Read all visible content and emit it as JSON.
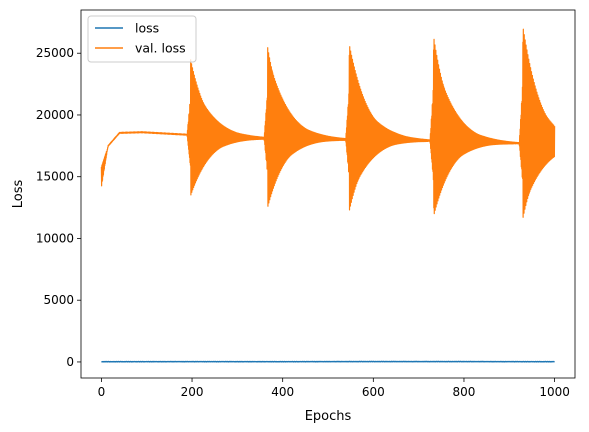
{
  "chart_data": {
    "type": "line",
    "title": "",
    "xlabel": "Epochs",
    "ylabel": "Loss",
    "xlim": [
      -45,
      1045
    ],
    "ylim": [
      -1300,
      28500
    ],
    "x_ticks": [
      0,
      200,
      400,
      600,
      800,
      1000
    ],
    "y_ticks": [
      0,
      5000,
      10000,
      15000,
      20000,
      25000
    ],
    "grid": false,
    "legend_position": "top-left",
    "series": [
      {
        "name": "loss",
        "color": "#1f77b4",
        "profile": [
          [
            0,
            20
          ],
          [
            200,
            25
          ],
          [
            400,
            22
          ],
          [
            600,
            30
          ],
          [
            800,
            28
          ],
          [
            1000,
            20
          ]
        ]
      },
      {
        "name": "val. loss",
        "color": "#ff7f0e",
        "baseline": [
          [
            0,
            15000
          ],
          [
            15,
            17500
          ],
          [
            40,
            18550
          ],
          [
            90,
            18600
          ],
          [
            190,
            18400
          ],
          [
            195,
            18300
          ],
          [
            205,
            18200
          ],
          [
            300,
            18150
          ],
          [
            365,
            18100
          ],
          [
            375,
            18100
          ],
          [
            450,
            18100
          ],
          [
            545,
            18000
          ],
          [
            555,
            18000
          ],
          [
            650,
            18000
          ],
          [
            730,
            17900
          ],
          [
            740,
            17900
          ],
          [
            850,
            17800
          ],
          [
            920,
            17700
          ],
          [
            935,
            17700
          ],
          [
            1000,
            17600
          ]
        ],
        "spikes": [
          {
            "epoch": 197,
            "max": 24500,
            "min": 13200
          },
          {
            "epoch": 367,
            "max": 25800,
            "min": 12500
          },
          {
            "epoch": 547,
            "max": 25900,
            "min": 12100
          },
          {
            "epoch": 733,
            "max": 26500,
            "min": 11600
          },
          {
            "epoch": 930,
            "max": 27300,
            "min": 11400
          }
        ]
      }
    ]
  }
}
